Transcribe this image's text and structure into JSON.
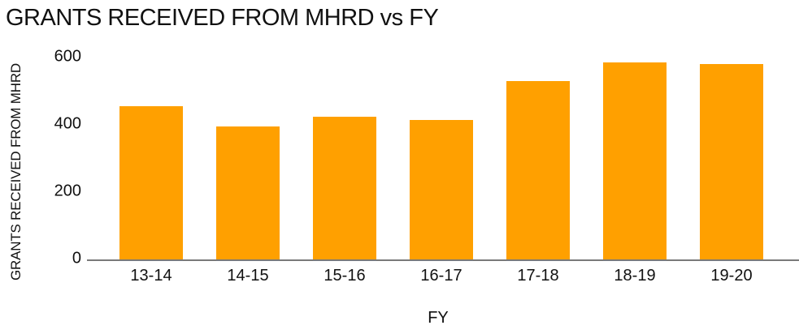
{
  "title": "GRANTS RECEIVED FROM MHRD vs FY",
  "colors": {
    "bar": "#FFA000",
    "axis_line": "#7a7a7a",
    "text": "#111111",
    "background": "#ffffff"
  },
  "chart_data": {
    "type": "bar",
    "title": "GRANTS RECEIVED FROM MHRD vs FY",
    "categories": [
      "13-14",
      "14-15",
      "15-16",
      "16-17",
      "17-18",
      "18-19",
      "19-20"
    ],
    "values": [
      455,
      395,
      425,
      415,
      530,
      585,
      580
    ],
    "xlabel": "FY",
    "ylabel": "GRANTS RECEIVED FROM MHRD",
    "ylim": [
      0,
      600
    ],
    "yticks": [
      0,
      200,
      400,
      600
    ],
    "grid": false,
    "legend": false,
    "bar_color": "#FFA000"
  }
}
